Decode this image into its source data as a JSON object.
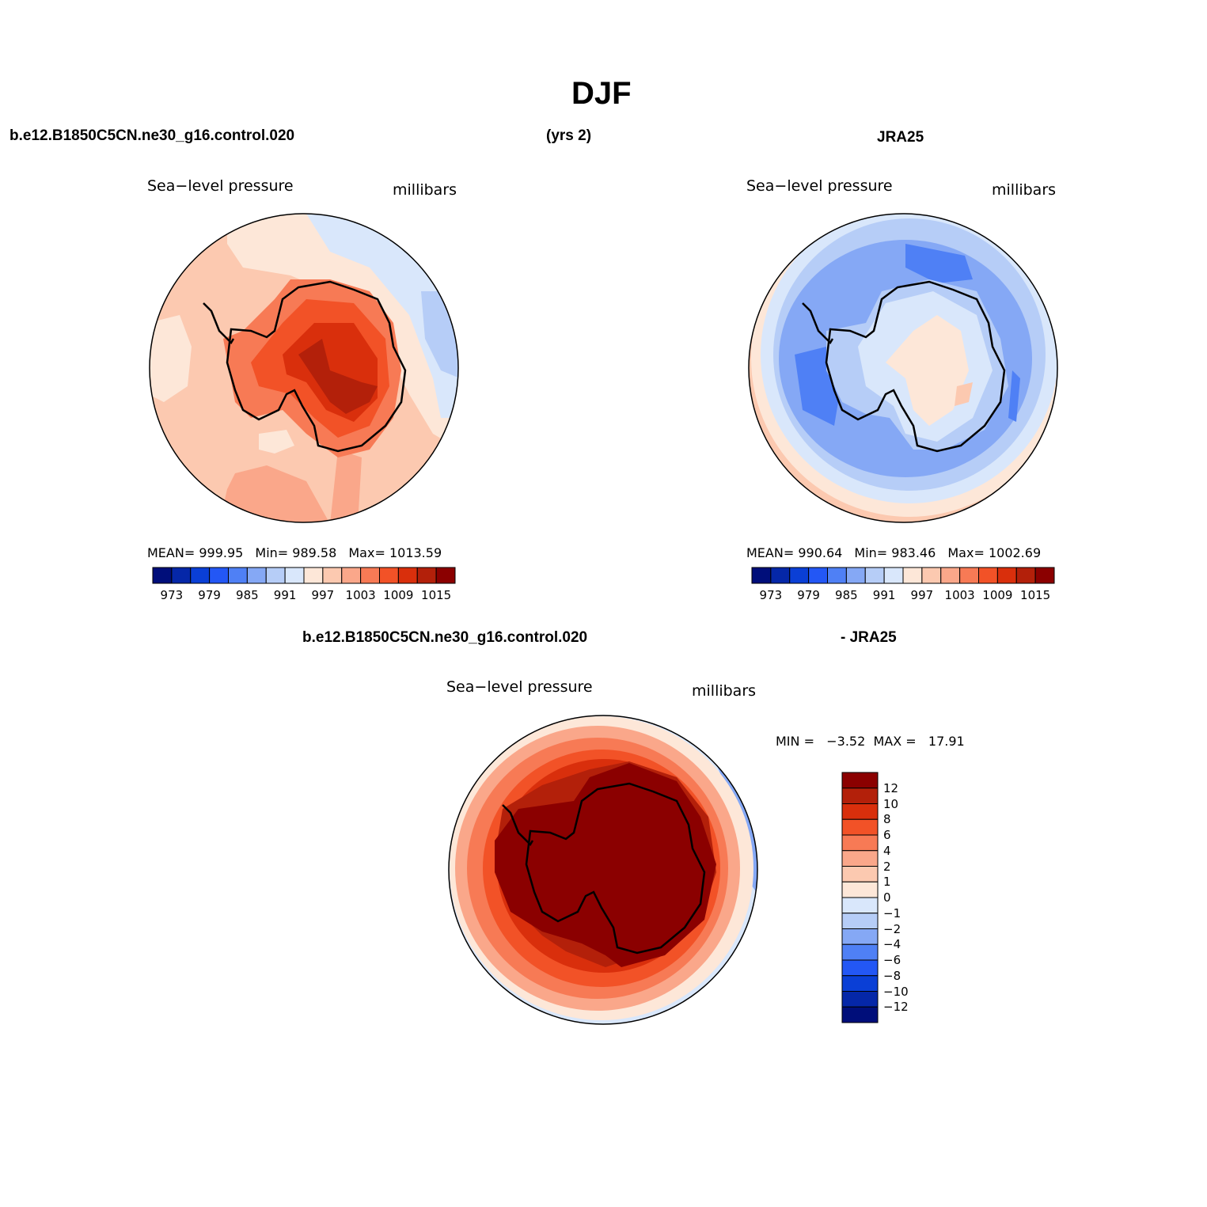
{
  "figure": {
    "title": "DJF",
    "model_case": "b.e12.B1850C5CN.ne30_g16.control.020",
    "years": "(yrs 2)",
    "obs": "JRA25",
    "diff_case": "b.e12.B1850C5CN.ne30_g16.control.020",
    "diff_obs": "- JRA25"
  },
  "panels": {
    "model": {
      "variable": "Sea−level pressure",
      "units": "millibars",
      "mean_label": "MEAN=",
      "mean": "999.95",
      "min_label": "Min=",
      "min": "989.58",
      "max_label": "Max=",
      "max": "1013.59"
    },
    "obs": {
      "variable": "Sea−level pressure",
      "units": "millibars",
      "mean_label": "MEAN=",
      "mean": "990.64",
      "min_label": "Min=",
      "min": "983.46",
      "max_label": "Max=",
      "max": "1002.69"
    },
    "diff": {
      "variable": "Sea−level pressure",
      "units": "millibars",
      "minmax_text": "MIN =   −3.52  MAX =   17.91"
    }
  },
  "colorbars": {
    "abs": {
      "colors": [
        "#000e7a",
        "#0527a8",
        "#0a3fd6",
        "#2357f5",
        "#4f80f5",
        "#85a8f5",
        "#b6cdf7",
        "#d9e7fb",
        "#fde7d8",
        "#fcc9b0",
        "#faa78a",
        "#f77a55",
        "#f25227",
        "#d92f0c",
        "#b3200a",
        "#8b0000"
      ],
      "labels": [
        "973",
        "979",
        "985",
        "991",
        "997",
        "1003",
        "1009",
        "1015"
      ]
    },
    "diff": {
      "colors": [
        "#8b0000",
        "#b3200a",
        "#d92f0c",
        "#f25227",
        "#f77a55",
        "#faa78a",
        "#fcc9b0",
        "#fde7d8",
        "#d9e7fb",
        "#b6cdf7",
        "#85a8f5",
        "#4f80f5",
        "#2357f5",
        "#0a3fd6",
        "#0527a8",
        "#000e7a"
      ],
      "labels": [
        "12",
        "10",
        "8",
        "6",
        "4",
        "2",
        "1",
        "0",
        "−1",
        "−2",
        "−4",
        "−6",
        "−8",
        "−10",
        "−12"
      ]
    }
  },
  "map_colors": {
    "model": {
      "ocean": "#fcc9b0",
      "coast": "#f77a55",
      "inner": "#f25227",
      "core": "#d92f0c",
      "peak": "#b3200a",
      "light": "#fde7d8",
      "blue1": "#d9e7fb",
      "blue2": "#b6cdf7",
      "pale_band": "#faa78a"
    },
    "obs": {
      "outer": "#fde7d8",
      "ring1": "#d9e7fb",
      "ring2": "#b6cdf7",
      "ring3": "#85a8f5",
      "ring4": "#4f80f5",
      "land": "#d9e7fb",
      "plateau": "#fde7d8",
      "dome": "#fcc9b0",
      "edge": "#fcc9b0"
    },
    "diff": {
      "outer": "#fde7d8",
      "r1": "#faa78a",
      "r2": "#f77a55",
      "r3": "#f25227",
      "r4": "#d92f0c",
      "r5": "#b3200a",
      "core": "#8b0000",
      "blue": "#b6cdf7",
      "blue2": "#85a8f5"
    }
  }
}
